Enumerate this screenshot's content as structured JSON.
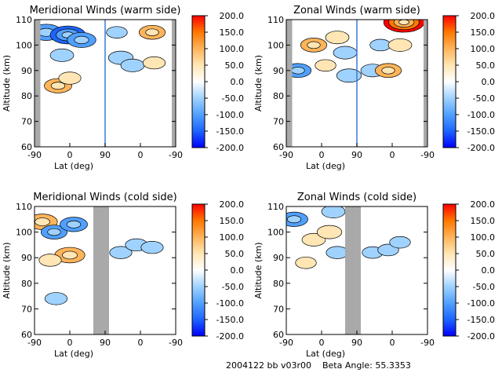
{
  "footer": {
    "id_text": "2004122 bb v03r00",
    "beta_label": "Beta Angle:",
    "beta_value": "55.3353"
  },
  "colorbar": {
    "ticks": [
      "200.0",
      "150.0",
      "100.0",
      "50.0",
      "0.0",
      "-50.0",
      "-100.0",
      "-150.0",
      "-200.0"
    ],
    "range": [
      -200,
      200
    ],
    "colors": [
      "#0000ff",
      "#1e64ff",
      "#50a0ff",
      "#a0d2ff",
      "#ffffff",
      "#ffe6b4",
      "#ffb45a",
      "#ff7800",
      "#ff0000"
    ]
  },
  "chart_data": [
    {
      "type": "heatmap",
      "title": "Meridional Winds (warm side)",
      "ylabel": "Altitude (km)",
      "xlabel": "Lat (deg)",
      "x_ticks": [
        "-90",
        "0",
        "90",
        "0",
        "-90"
      ],
      "y_ticks": [
        60,
        70,
        80,
        90,
        100,
        110
      ],
      "ylim": [
        60,
        110
      ],
      "gray_bands_x": [
        [
          -90,
          -75
        ],
        [
          -10,
          -90
        ]
      ],
      "data_extent_note": "",
      "blobs": [
        {
          "x": -60,
          "y": 105,
          "value": -120
        },
        {
          "x": -5,
          "y": 104,
          "value": -150
        },
        {
          "x": 30,
          "y": 102,
          "value": -100
        },
        {
          "x": -20,
          "y": 96,
          "value": -60
        },
        {
          "x": -30,
          "y": 84,
          "value": 90
        },
        {
          "x": 0,
          "y": 87,
          "value": 50
        },
        {
          "x": 130,
          "y": 95,
          "value": -70
        },
        {
          "x": 160,
          "y": 92,
          "value": -60
        },
        {
          "x": 120,
          "y": 105,
          "value": -40
        },
        {
          "x": 210,
          "y": 105,
          "value": 80
        },
        {
          "x": 215,
          "y": 93,
          "value": 50
        }
      ]
    },
    {
      "type": "heatmap",
      "title": "Zonal Winds (warm side)",
      "ylabel": "Altitude (km)",
      "xlabel": "Lat (deg)",
      "x_ticks": [
        "-90",
        "0",
        "90",
        "0",
        "-90"
      ],
      "y_ticks": [
        60,
        70,
        80,
        90,
        100,
        110
      ],
      "ylim": [
        60,
        110
      ],
      "gray_bands_x": [
        [
          -90,
          -75
        ],
        [
          -10,
          -90
        ]
      ],
      "blobs": [
        {
          "x": -20,
          "y": 100,
          "value": 80
        },
        {
          "x": 40,
          "y": 103,
          "value": 60
        },
        {
          "x": -60,
          "y": 90,
          "value": -80
        },
        {
          "x": 70,
          "y": 88,
          "value": -70
        },
        {
          "x": 10,
          "y": 92,
          "value": 40
        },
        {
          "x": 60,
          "y": 97,
          "value": -60
        },
        {
          "x": 130,
          "y": 90,
          "value": -60
        },
        {
          "x": 170,
          "y": 90,
          "value": 80
        },
        {
          "x": 150,
          "y": 100,
          "value": -40
        },
        {
          "x": 200,
          "y": 100,
          "value": 60
        },
        {
          "x": 210,
          "y": 109,
          "value": 190
        }
      ]
    },
    {
      "type": "heatmap",
      "title": "Meridional Winds (cold side)",
      "ylabel": "Altitude (km)",
      "xlabel": "Lat (deg)",
      "x_ticks": [
        "-90",
        "0",
        "90",
        "0",
        "-90"
      ],
      "y_ticks": [
        60,
        70,
        80,
        90,
        100,
        110
      ],
      "ylim": [
        60,
        110
      ],
      "gray_bands_x": [
        [
          60,
          100
        ]
      ],
      "blobs": [
        {
          "x": -70,
          "y": 104,
          "value": 110
        },
        {
          "x": -40,
          "y": 100,
          "value": -80
        },
        {
          "x": 10,
          "y": 103,
          "value": -90
        },
        {
          "x": 0,
          "y": 91,
          "value": 110
        },
        {
          "x": -50,
          "y": 89,
          "value": 50
        },
        {
          "x": -35,
          "y": 74,
          "value": -50
        },
        {
          "x": 130,
          "y": 92,
          "value": -50
        },
        {
          "x": 170,
          "y": 95,
          "value": -50
        },
        {
          "x": 210,
          "y": 94,
          "value": -50
        }
      ]
    },
    {
      "type": "heatmap",
      "title": "Zonal Winds (cold side)",
      "ylabel": "Altitude (km)",
      "xlabel": "Lat (deg)",
      "x_ticks": [
        "-90",
        "0",
        "90",
        "0",
        "-90"
      ],
      "y_ticks": [
        60,
        70,
        80,
        90,
        100,
        110
      ],
      "ylim": [
        60,
        110
      ],
      "gray_bands_x": [
        [
          60,
          100
        ]
      ],
      "blobs": [
        {
          "x": -70,
          "y": 105,
          "value": -90
        },
        {
          "x": -20,
          "y": 97,
          "value": 60
        },
        {
          "x": 20,
          "y": 100,
          "value": 70
        },
        {
          "x": 30,
          "y": 108,
          "value": -60
        },
        {
          "x": -40,
          "y": 88,
          "value": 40
        },
        {
          "x": 40,
          "y": 92,
          "value": -50
        },
        {
          "x": 130,
          "y": 92,
          "value": -40
        },
        {
          "x": 170,
          "y": 93,
          "value": -40
        },
        {
          "x": 200,
          "y": 96,
          "value": -40
        }
      ]
    }
  ]
}
